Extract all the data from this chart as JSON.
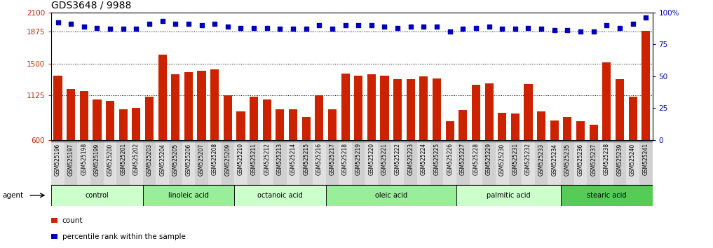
{
  "title": "GDS3648 / 9988",
  "samples": [
    "GSM525196",
    "GSM525197",
    "GSM525198",
    "GSM525199",
    "GSM525200",
    "GSM525201",
    "GSM525202",
    "GSM525203",
    "GSM525204",
    "GSM525205",
    "GSM525206",
    "GSM525207",
    "GSM525208",
    "GSM525209",
    "GSM525210",
    "GSM525211",
    "GSM525212",
    "GSM525213",
    "GSM525214",
    "GSM525215",
    "GSM525216",
    "GSM525217",
    "GSM525218",
    "GSM525219",
    "GSM525220",
    "GSM525221",
    "GSM525222",
    "GSM525223",
    "GSM525224",
    "GSM525225",
    "GSM525226",
    "GSM525227",
    "GSM525228",
    "GSM525229",
    "GSM525230",
    "GSM525231",
    "GSM525232",
    "GSM525233",
    "GSM525234",
    "GSM525235",
    "GSM525236",
    "GSM525237",
    "GSM525238",
    "GSM525239",
    "GSM525240",
    "GSM525241"
  ],
  "counts": [
    1360,
    1200,
    1175,
    1080,
    1060,
    960,
    980,
    1110,
    1600,
    1370,
    1395,
    1415,
    1435,
    1125,
    940,
    1110,
    1080,
    960,
    960,
    870,
    1130,
    960,
    1380,
    1355,
    1370,
    1360,
    1320,
    1320,
    1350,
    1325,
    820,
    950,
    1250,
    1270,
    925,
    910,
    1260,
    940,
    830,
    870,
    820,
    780,
    1510,
    1320,
    1110,
    1880
  ],
  "percentiles": [
    92,
    91,
    89,
    88,
    87,
    87,
    87,
    91,
    93,
    91,
    91,
    90,
    91,
    89,
    88,
    88,
    88,
    87,
    87,
    87,
    90,
    87,
    90,
    90,
    90,
    89,
    88,
    89,
    89,
    89,
    85,
    87,
    88,
    89,
    87,
    87,
    88,
    87,
    86,
    86,
    85,
    85,
    90,
    88,
    91,
    96
  ],
  "groups": [
    {
      "name": "control",
      "start": 0,
      "end": 6,
      "color": "#ccffcc"
    },
    {
      "name": "linoleic acid",
      "start": 7,
      "end": 13,
      "color": "#99ee99"
    },
    {
      "name": "octanoic acid",
      "start": 14,
      "end": 20,
      "color": "#ccffcc"
    },
    {
      "name": "oleic acid",
      "start": 21,
      "end": 30,
      "color": "#99ee99"
    },
    {
      "name": "palmitic acid",
      "start": 31,
      "end": 38,
      "color": "#ccffcc"
    },
    {
      "name": "stearic acid",
      "start": 39,
      "end": 45,
      "color": "#55cc55"
    }
  ],
  "bar_color": "#cc2200",
  "dot_color": "#0000bb",
  "ylim_left": [
    600,
    2100
  ],
  "yticks_left": [
    600,
    1125,
    1500,
    1875,
    2100
  ],
  "ylim_right": [
    0,
    100
  ],
  "yticks_right": [
    0,
    25,
    50,
    75,
    100
  ],
  "background_color": "#ffffff",
  "title_fontsize": 10,
  "agent_label": "agent",
  "legend_count_label": "count",
  "legend_pct_label": "percentile rank within the sample"
}
